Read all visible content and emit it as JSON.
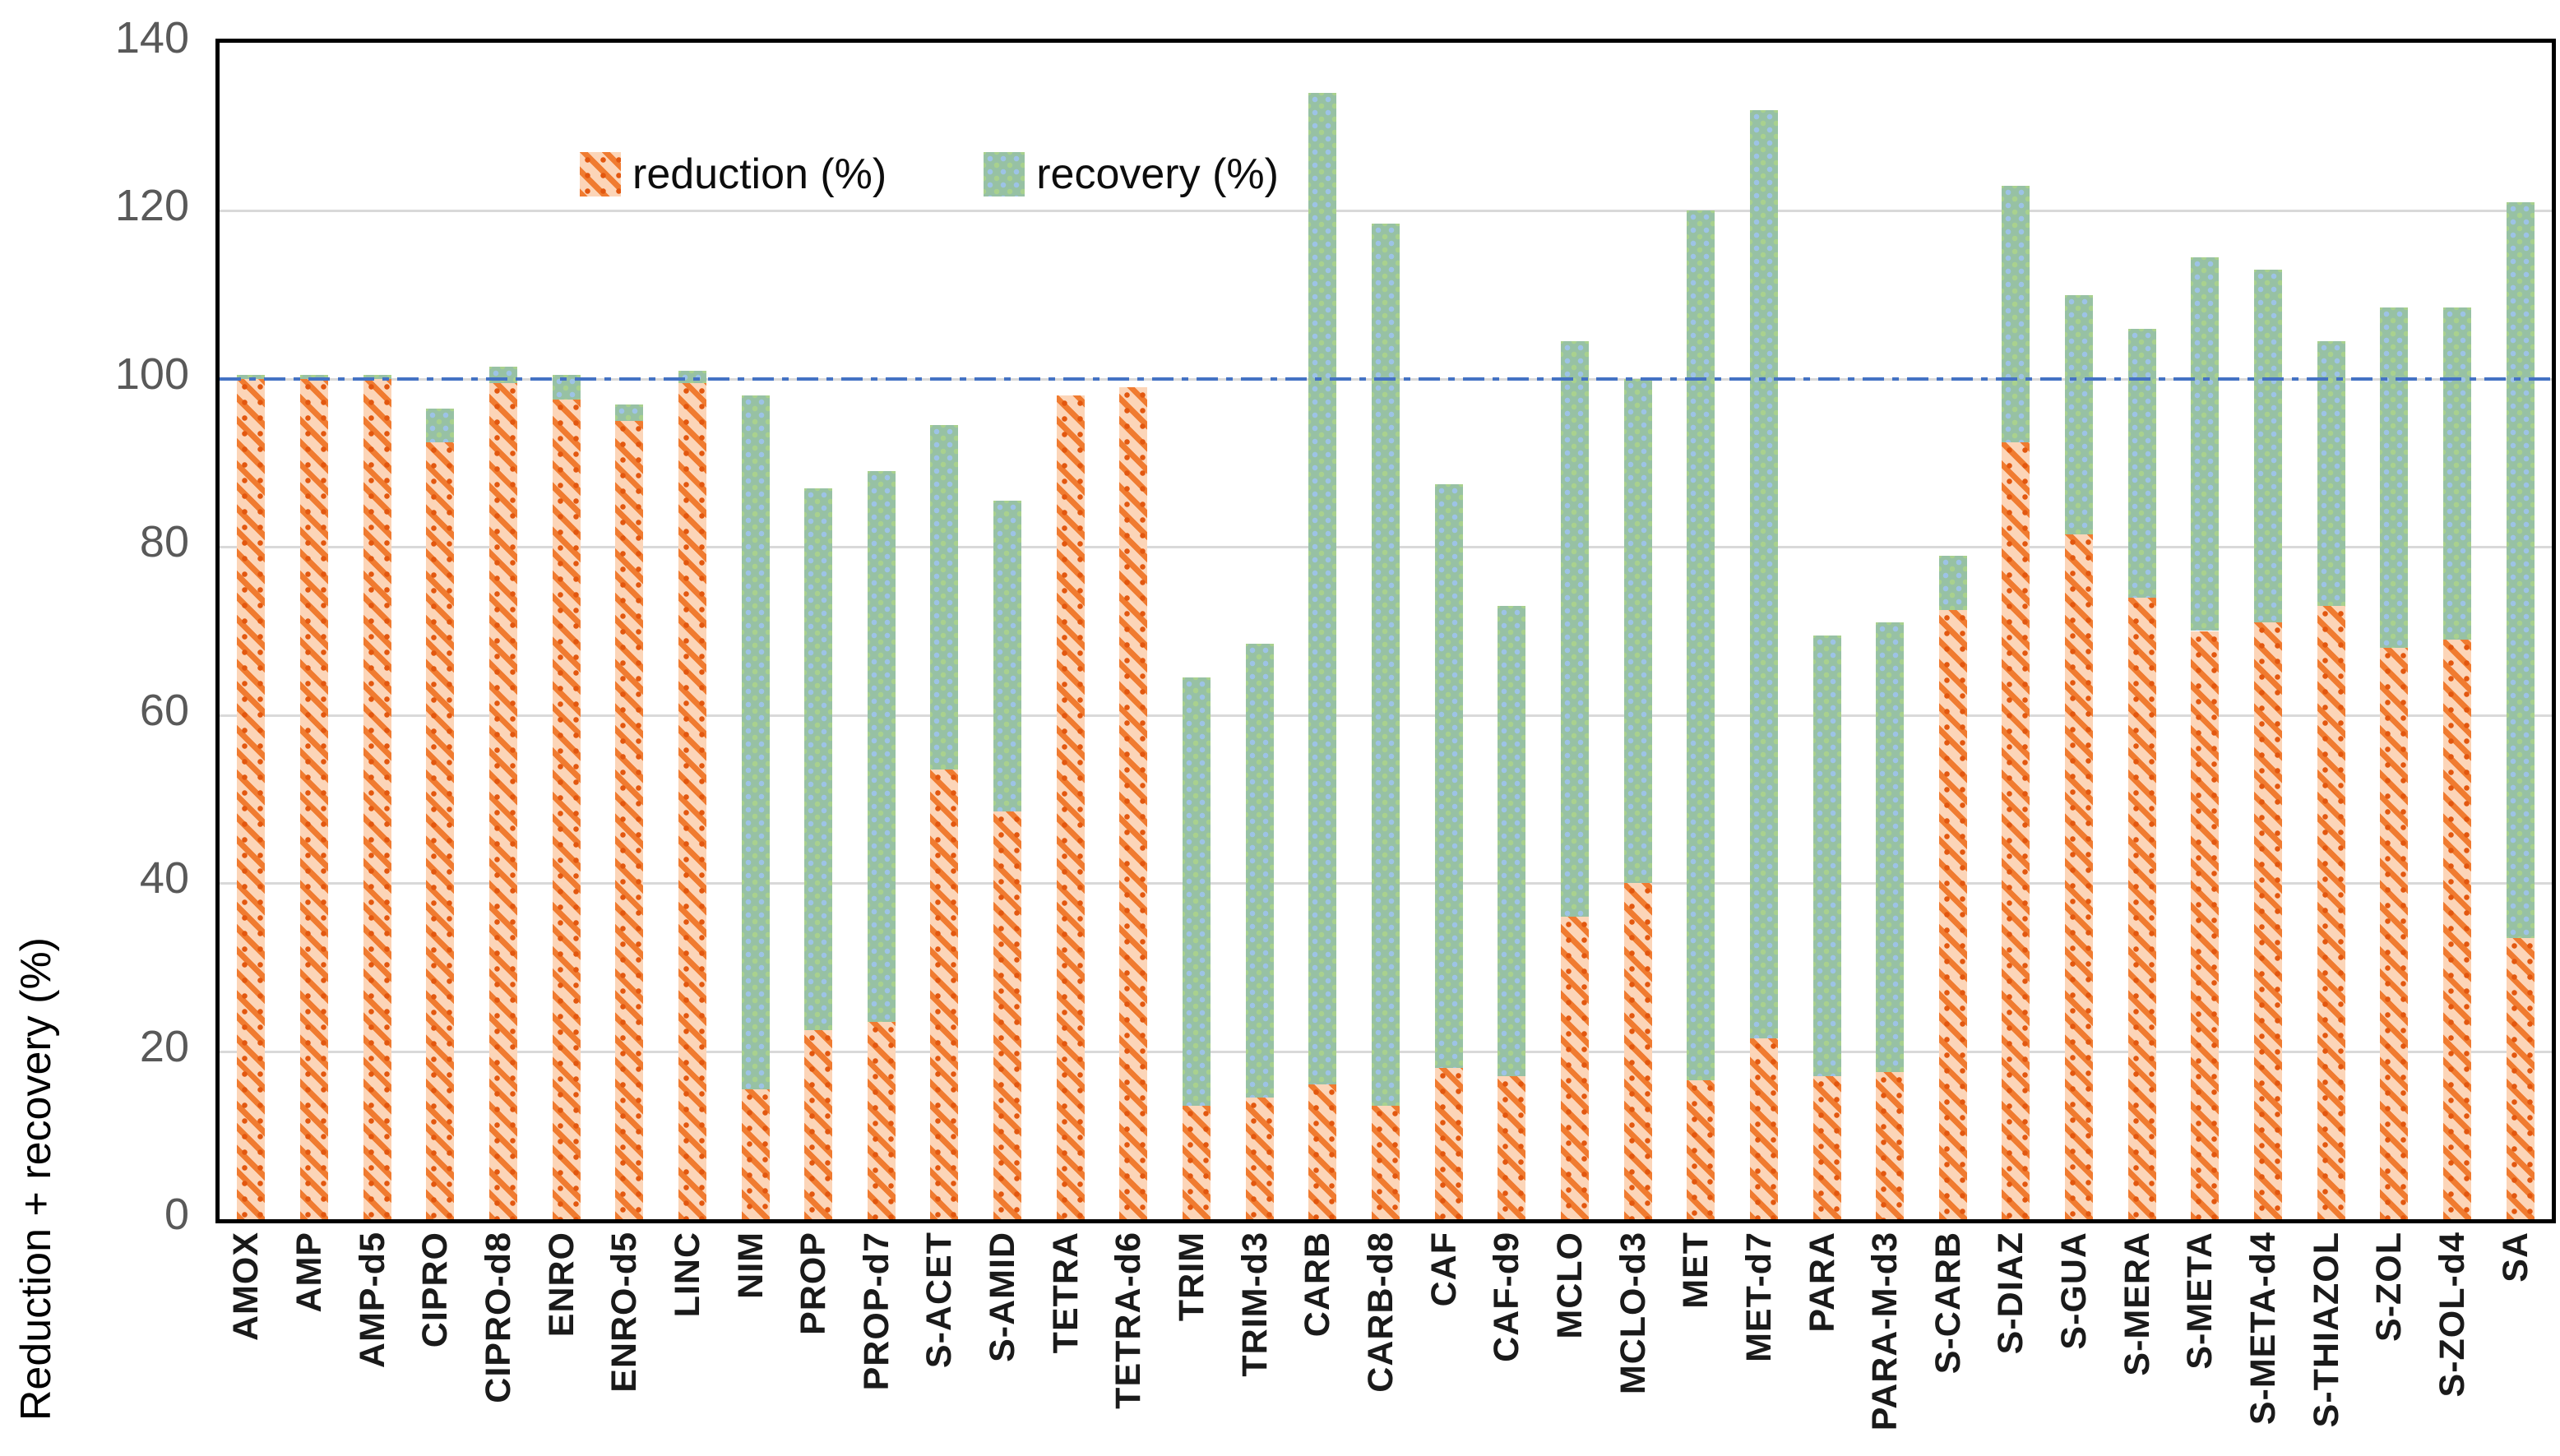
{
  "chart_data": {
    "type": "bar",
    "stacked": true,
    "title": "",
    "xlabel": "",
    "ylabel": "Reduction + recovery (%)",
    "ylim": [
      0,
      140
    ],
    "yticks": [
      0,
      20,
      40,
      60,
      80,
      100,
      120,
      140
    ],
    "grid": "horizontal",
    "reference_line": 100,
    "legend_position": "top-left-inside",
    "categories": [
      "AMOX",
      "AMP",
      "AMP-d5",
      "CIPRO",
      "CIPRO-d8",
      "ENRO",
      "ENRO-d5",
      "LINC",
      "NIM",
      "PROP",
      "PROP-d7",
      "S-ACET",
      "S-AMID",
      "TETRA",
      "TETRA-d6",
      "TRIM",
      "TRIM-d3",
      "CARB",
      "CARB-d8",
      "CAF",
      "CAF-d9",
      "MCLO",
      "MCLO-d3",
      "MET",
      "MET-d7",
      "PARA",
      "PARA-M-d3",
      "S-CARB",
      "S-DIAZ",
      "S-GUA",
      "S-MERA",
      "S-META",
      "S-META-d4",
      "S-THIAZOL",
      "S-ZOL",
      "S-ZOL-d4",
      "SA"
    ],
    "series": [
      {
        "name": "reduction (%)",
        "values": [
          100,
          100,
          100,
          92.5,
          99.5,
          97.5,
          95,
          99.5,
          15.5,
          22.5,
          23.5,
          53.5,
          48.5,
          98,
          99,
          13.5,
          14.5,
          16,
          13.5,
          18,
          17,
          36,
          40,
          16.5,
          21.5,
          17,
          17.5,
          72.5,
          92.5,
          81.5,
          74,
          70,
          71,
          73,
          68,
          69,
          33.5
        ]
      },
      {
        "name": "recovery (%)",
        "values": [
          0.5,
          0.5,
          0.5,
          4,
          2,
          3,
          2,
          1.5,
          82.5,
          64.5,
          65.5,
          41,
          37,
          0,
          0,
          51,
          54,
          118,
          105,
          69.5,
          56,
          68.5,
          60,
          103.5,
          110.5,
          52.5,
          53.5,
          6.5,
          30.5,
          28.5,
          32,
          44.5,
          42,
          31.5,
          40.5,
          39.5,
          87.5
        ]
      }
    ]
  },
  "colors": {
    "reduction_stripe": "#ed7d31",
    "reduction_fill": "#fcd5b8",
    "recovery_fill": "#97c1a4",
    "recovery_dot_blue": "#9dc3e6",
    "recovery_dot_green": "#a9d18e",
    "reference_line": "#4472c4",
    "gridline": "#d9d9d9",
    "tick_text": "#595959",
    "label_text": "#1a1a1a"
  }
}
